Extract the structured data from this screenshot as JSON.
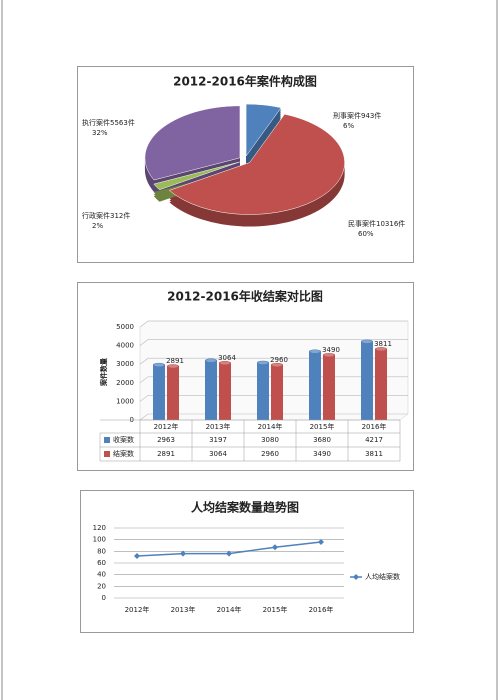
{
  "chart_data": [
    {
      "type": "pie",
      "title": "2012-2016年案件构成图",
      "categories": [
        "刑事案件943件",
        "民事案件10316件",
        "行政案件312件",
        "执行案件5563件"
      ],
      "values": [
        6,
        60,
        2,
        32
      ],
      "value_labels": [
        "6%",
        "60%",
        "2%",
        "32%"
      ],
      "colors": [
        "#4f81bd",
        "#c0504d",
        "#9bbb59",
        "#8064a2"
      ]
    },
    {
      "type": "bar3d",
      "title": "2012-2016年收结案对比图",
      "y_label": "案件数量",
      "categories": [
        "2012年",
        "2013年",
        "2014年",
        "2015年",
        "2016年"
      ],
      "series": [
        {
          "name": "收案数",
          "color": "#4f81bd",
          "values": [
            2963,
            3197,
            3080,
            3680,
            4217
          ]
        },
        {
          "name": "结案数",
          "color": "#c0504d",
          "values": [
            2891,
            3064,
            2960,
            3490,
            3811
          ]
        }
      ],
      "ylim": [
        0,
        5000
      ],
      "yticks": [
        0,
        1000,
        2000,
        3000,
        4000,
        5000
      ],
      "grid": true,
      "data_table": true
    },
    {
      "type": "line",
      "title": "人均结案数量趋势图",
      "categories": [
        "2012年",
        "2013年",
        "2014年",
        "2015年",
        "2016年"
      ],
      "series": [
        {
          "name": "人均结案数",
          "color": "#4f81bd",
          "values": [
            72,
            76,
            76,
            87,
            96
          ]
        }
      ],
      "ylim": [
        0,
        120
      ],
      "yticks": [
        0,
        20,
        40,
        60,
        80,
        100,
        120
      ],
      "grid": true,
      "legend": "right"
    }
  ]
}
